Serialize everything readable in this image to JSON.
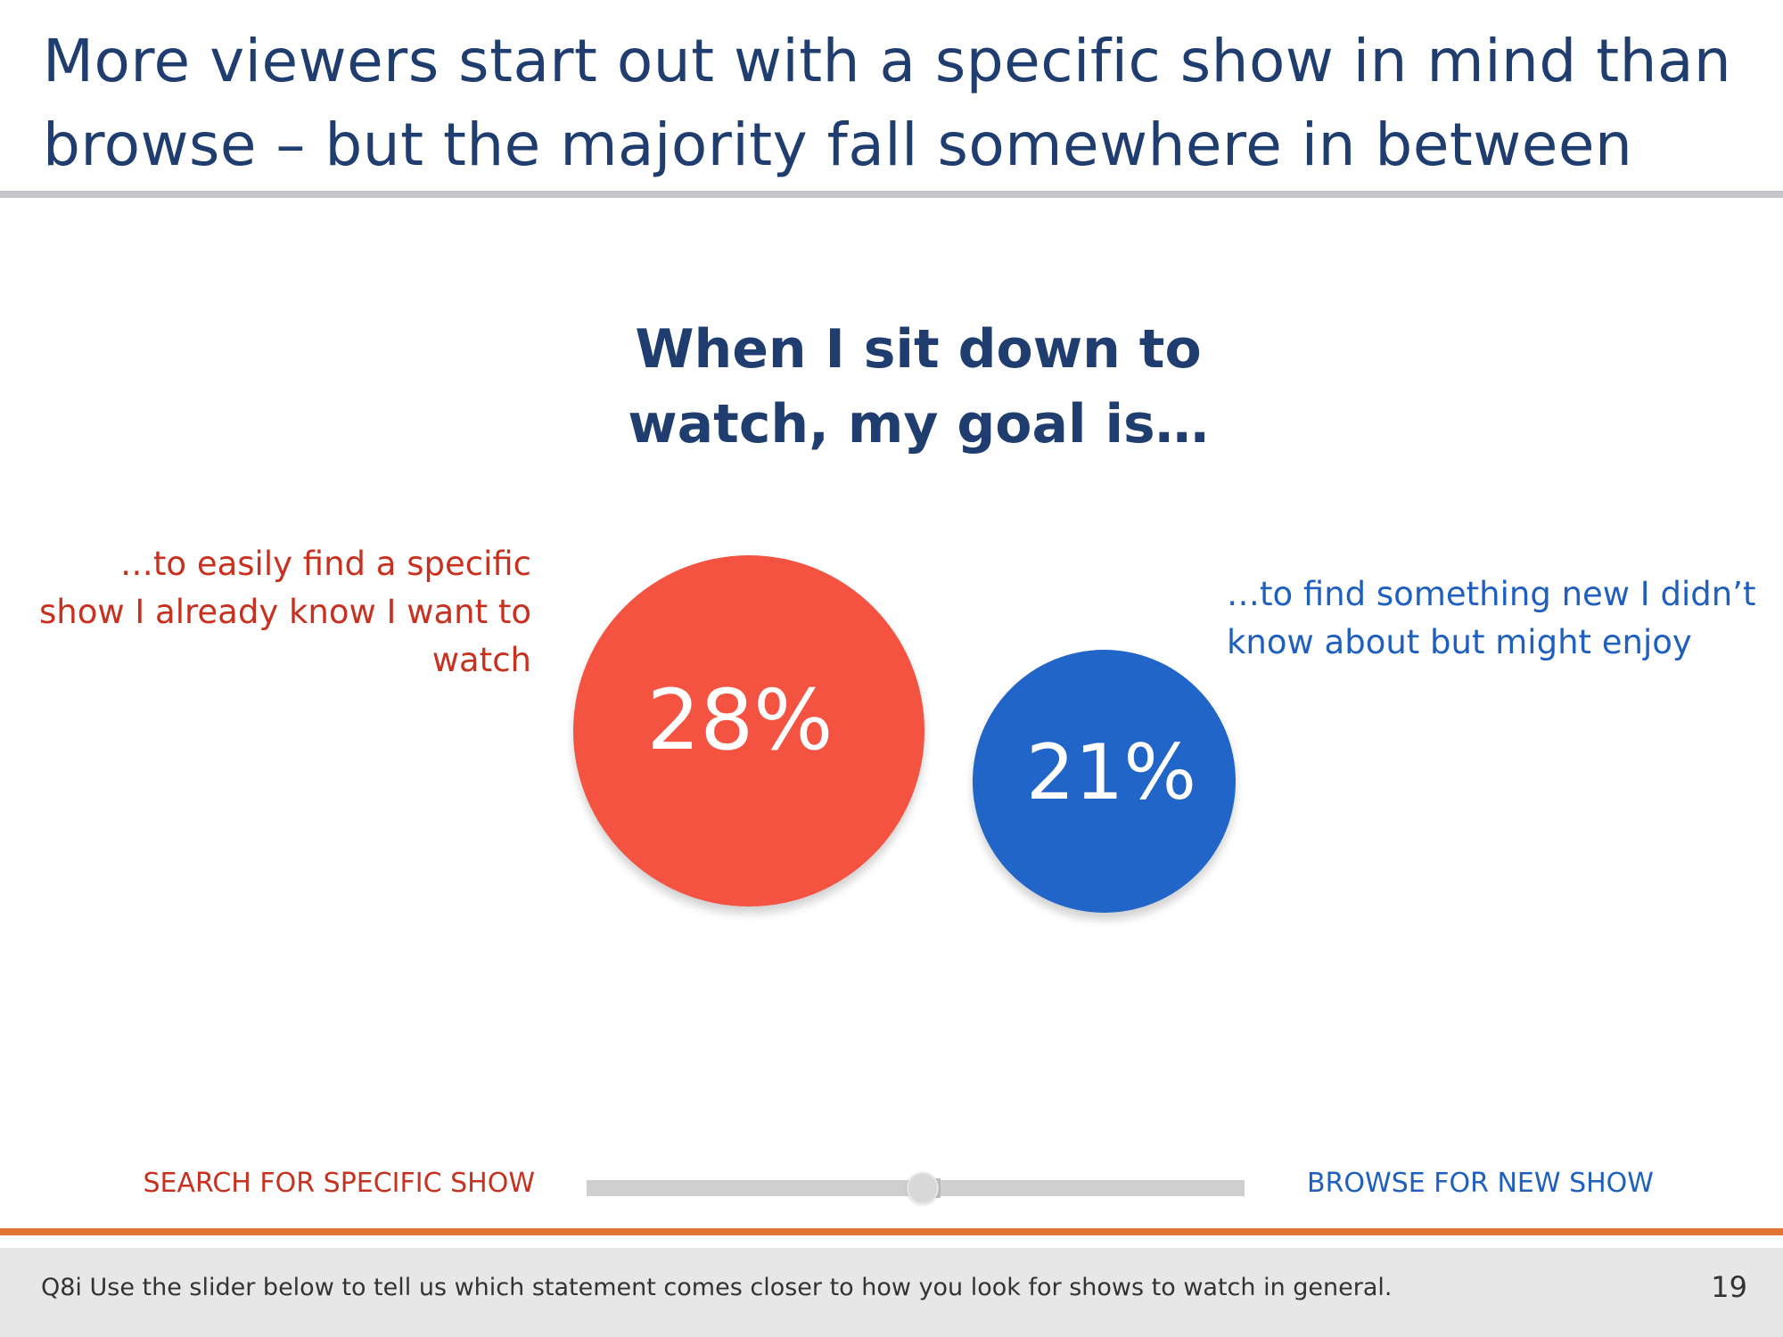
{
  "slide": {
    "title": "More viewers start out with a specific show in mind than browse – but the majority fall somewhere in between",
    "question_heading": "When I sit down to watch, my goal is…",
    "page_number": "19"
  },
  "statements": {
    "search": "…to easily find a specific show I already know I want to watch",
    "browse": "…to find something new I didn’t know about but might enjoy"
  },
  "results": {
    "search": {
      "value": 28,
      "label": "28%",
      "color": "#f35340"
    },
    "browse": {
      "value": 21,
      "label": "21%",
      "color": "#2165c9"
    }
  },
  "slider": {
    "left_label": "SEARCH FOR SPECIFIC SHOW",
    "right_label": "BROWSE FOR NEW SHOW",
    "position": 0.5
  },
  "footer": {
    "note": "Q8i Use the slider below to tell us which statement comes closer to how you look for shows to watch in general."
  },
  "colors": {
    "title": "#1f3d6e",
    "search_text": "#c8311f",
    "browse_text": "#1f5fbf",
    "accent_rule": "#e07432"
  }
}
